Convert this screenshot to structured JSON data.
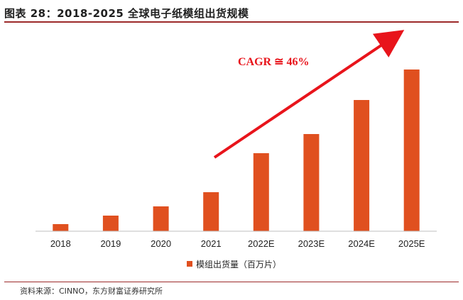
{
  "figure": {
    "title": "图表 28：2018-2025 全球电子纸模组出货规模",
    "source": "资料来源：CINNO，东方财富证券研究所"
  },
  "chart_data": {
    "type": "bar",
    "categories": [
      "2018",
      "2019",
      "2020",
      "2021",
      "2022E",
      "2023E",
      "2024E",
      "2025E"
    ],
    "series": [
      {
        "name": "模组出货量（百万片）",
        "values": [
          10,
          22,
          35,
          55,
          110,
          137,
          185,
          228
        ]
      }
    ],
    "ylim": [
      0,
      240
    ],
    "grid": false,
    "legend": "bottom-center",
    "annotation": {
      "text": "CAGR ≅ 46%",
      "color": "#e8141b"
    },
    "colors": {
      "bar": "#e0501f",
      "arrow": "#e8141b",
      "axis": "#bfbfbf"
    }
  }
}
